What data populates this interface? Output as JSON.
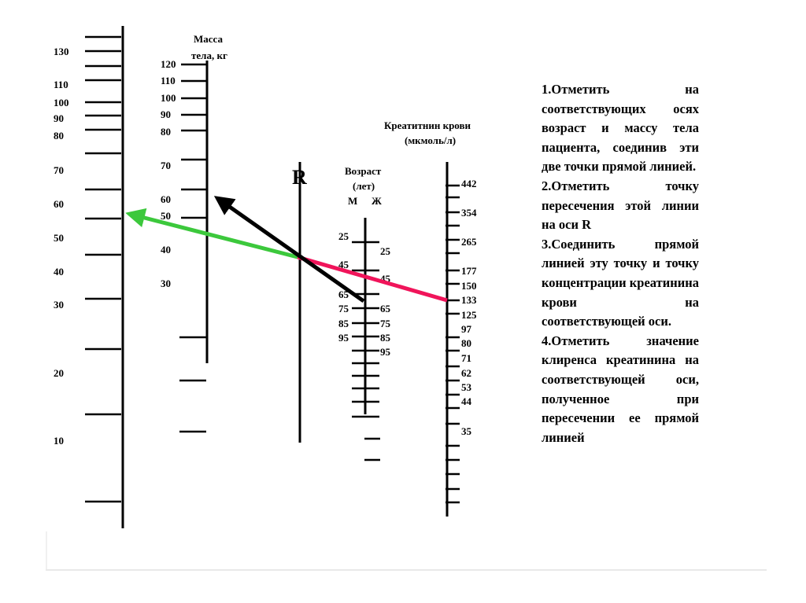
{
  "axes": {
    "left": {
      "labels": [
        "130",
        "110",
        "100",
        "90",
        "80",
        "70",
        "60",
        "50",
        "40",
        "30",
        "20",
        "10"
      ]
    },
    "mass": {
      "title_line1": "Масса",
      "title_line2": "тела, кг",
      "labels": [
        "120",
        "110",
        "100",
        "90",
        "80",
        "70",
        "60",
        "50",
        "40",
        "30"
      ]
    },
    "r": {
      "label": "R"
    },
    "age": {
      "title_line1": "Возраст",
      "title_line2": "(лет)",
      "m_label": "М",
      "f_label": "Ж",
      "m_values": [
        "25",
        "45",
        "65",
        "75",
        "85",
        "95"
      ],
      "f_values": [
        "25",
        "45",
        "65",
        "75",
        "85",
        "95"
      ]
    },
    "creatinine": {
      "title_line1": "Креатитнин  крови",
      "title_line2": "(мкмоль/л)",
      "labels": [
        "442",
        "354",
        "265",
        "177",
        "150",
        "133",
        "125",
        "97",
        "80",
        "71",
        "62",
        "53",
        "44",
        "35"
      ]
    }
  },
  "lines": {
    "black_arrow_color": "#000000",
    "green_arrow_color": "#3cc83c",
    "pink_line_color": "#f0145a"
  },
  "instructions": [
    "1.Отметить на соответствующих осях возраст и массу тела пациента, соединив эти две точки прямой линией.",
    "2.Отметить точку пересечения этой линии на оси R",
    "3.Соединить прямой линией эту точку и точку концентрации креатинина крови на соответствующей оси.",
    "4.Отметить значение клиренса креатинина на соответствующей оси, полученное при пересечении ее прямой линией"
  ]
}
